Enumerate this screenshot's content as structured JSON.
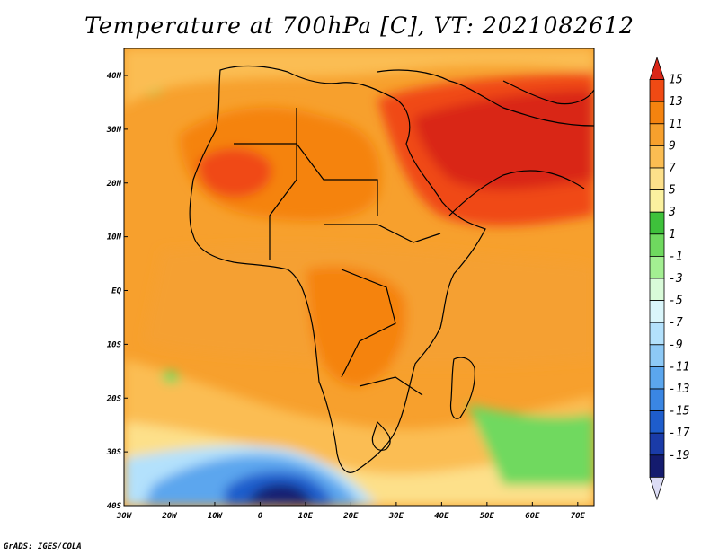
{
  "title": "Temperature at 700hPa [C], VT: 2021082612",
  "credit": "GrADS: IGES/COLA",
  "map": {
    "lon_labels": [
      "30W",
      "20W",
      "10W",
      "0",
      "10E",
      "20E",
      "30E",
      "40E",
      "50E",
      "60E",
      "70E"
    ],
    "lat_labels": [
      "40N",
      "30N",
      "20N",
      "10N",
      "EQ",
      "10S",
      "20S",
      "30S",
      "40S"
    ]
  },
  "colorbar": {
    "labels": [
      "15",
      "13",
      "11",
      "9",
      "7",
      "5",
      "3",
      "1",
      "-1",
      "-3",
      "-5",
      "-7",
      "-9",
      "-11",
      "-13",
      "-15",
      "-17",
      "-19"
    ],
    "colors": [
      "#d92617",
      "#f04a14",
      "#f5830f",
      "#f7a02d",
      "#fbbd52",
      "#fde08a",
      "#fbf19f",
      "#3ec13b",
      "#6fd95f",
      "#a3ef92",
      "#d9fbd9",
      "#daf6fb",
      "#b3e1fc",
      "#8dc9f6",
      "#5ba6ee",
      "#3a86e3",
      "#1e5dcc",
      "#1a3ba8",
      "#141b6e",
      "#dcdcf5"
    ]
  }
}
